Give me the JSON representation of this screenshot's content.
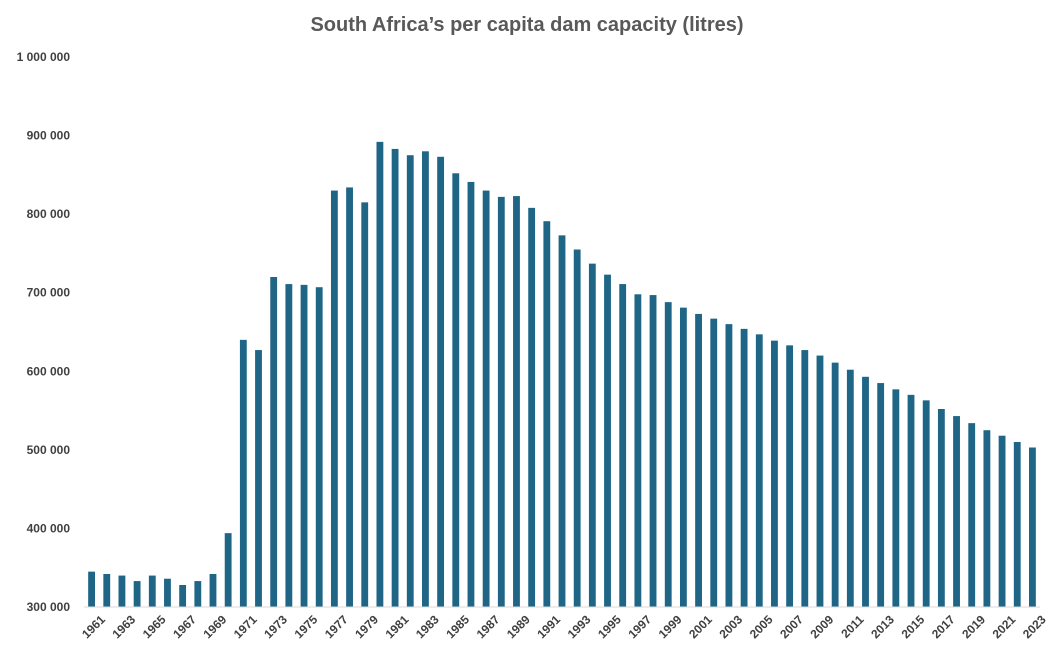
{
  "chart_data": {
    "type": "bar",
    "title": "South Africa’s per capita dam capacity (litres)",
    "xlabel": "",
    "ylabel": "",
    "ylim": [
      300000,
      1000000
    ],
    "yticks": [
      300000,
      400000,
      500000,
      600000,
      700000,
      800000,
      900000,
      1000000
    ],
    "ytick_labels": [
      "300 000",
      "400 000",
      "500 000",
      "600 000",
      "700 000",
      "800 000",
      "900 000",
      "1 000 000"
    ],
    "grid": false,
    "legend": "none",
    "bar_color": "#1f6585",
    "categories": [
      "1961",
      "1962",
      "1963",
      "1964",
      "1965",
      "1966",
      "1967",
      "1968",
      "1969",
      "1970",
      "1971",
      "1972",
      "1973",
      "1974",
      "1975",
      "1976",
      "1977",
      "1978",
      "1979",
      "1980",
      "1981",
      "1982",
      "1983",
      "1984",
      "1985",
      "1986",
      "1987",
      "1988",
      "1989",
      "1990",
      "1991",
      "1992",
      "1993",
      "1994",
      "1995",
      "1996",
      "1997",
      "1998",
      "1999",
      "2000",
      "2001",
      "2002",
      "2003",
      "2004",
      "2005",
      "2006",
      "2007",
      "2008",
      "2009",
      "2010",
      "2011",
      "2012",
      "2013",
      "2014",
      "2015",
      "2016",
      "2017",
      "2018",
      "2019",
      "2020",
      "2021",
      "2022",
      "2023"
    ],
    "xtick_labels": [
      "1961",
      "1963",
      "1965",
      "1967",
      "1969",
      "1971",
      "1973",
      "1975",
      "1977",
      "1979",
      "1981",
      "1983",
      "1985",
      "1987",
      "1989",
      "1991",
      "1993",
      "1995",
      "1997",
      "1999",
      "2001",
      "2003",
      "2005",
      "2007",
      "2009",
      "2011",
      "2013",
      "2015",
      "2017",
      "2019",
      "2021",
      "2023"
    ],
    "values": [
      345000,
      342000,
      340000,
      333000,
      340000,
      336000,
      328000,
      333000,
      342000,
      394000,
      640000,
      627000,
      720000,
      711000,
      710000,
      707000,
      830000,
      834000,
      815000,
      892000,
      883000,
      875000,
      880000,
      873000,
      852000,
      841000,
      830000,
      822000,
      823000,
      808000,
      791000,
      773000,
      755000,
      737000,
      723000,
      711000,
      698000,
      697000,
      688000,
      681000,
      673000,
      667000,
      660000,
      654000,
      647000,
      639000,
      633000,
      627000,
      620000,
      611000,
      602000,
      593000,
      585000,
      577000,
      570000,
      563000,
      552000,
      543000,
      534000,
      525000,
      518000,
      510000,
      503000
    ]
  }
}
